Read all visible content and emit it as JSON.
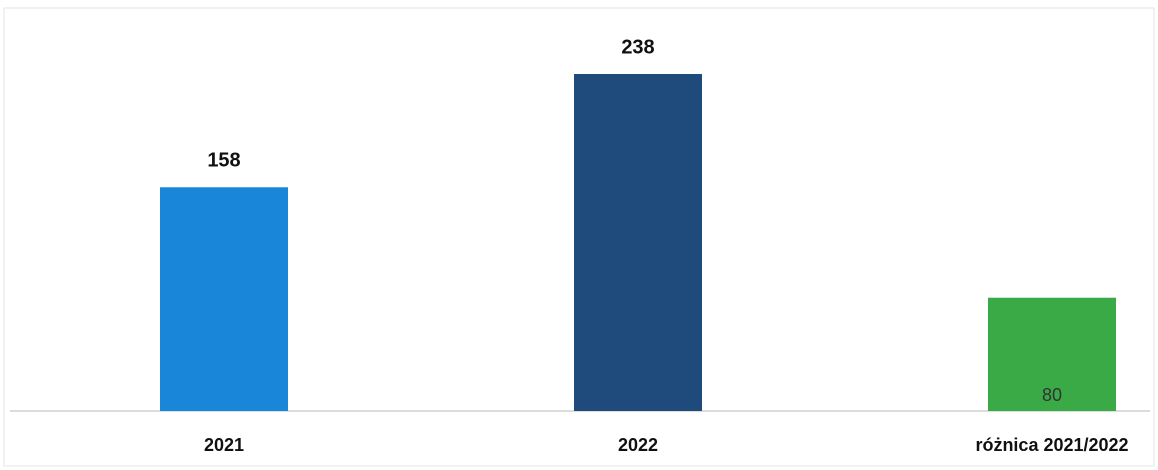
{
  "chart_data": {
    "type": "bar",
    "categories": [
      "2021",
      "2022",
      "różnica 2021/2022"
    ],
    "values": [
      158,
      238,
      80
    ],
    "colors": [
      "#1a86d9",
      "#1f4b7c",
      "#3aaa47"
    ]
  }
}
